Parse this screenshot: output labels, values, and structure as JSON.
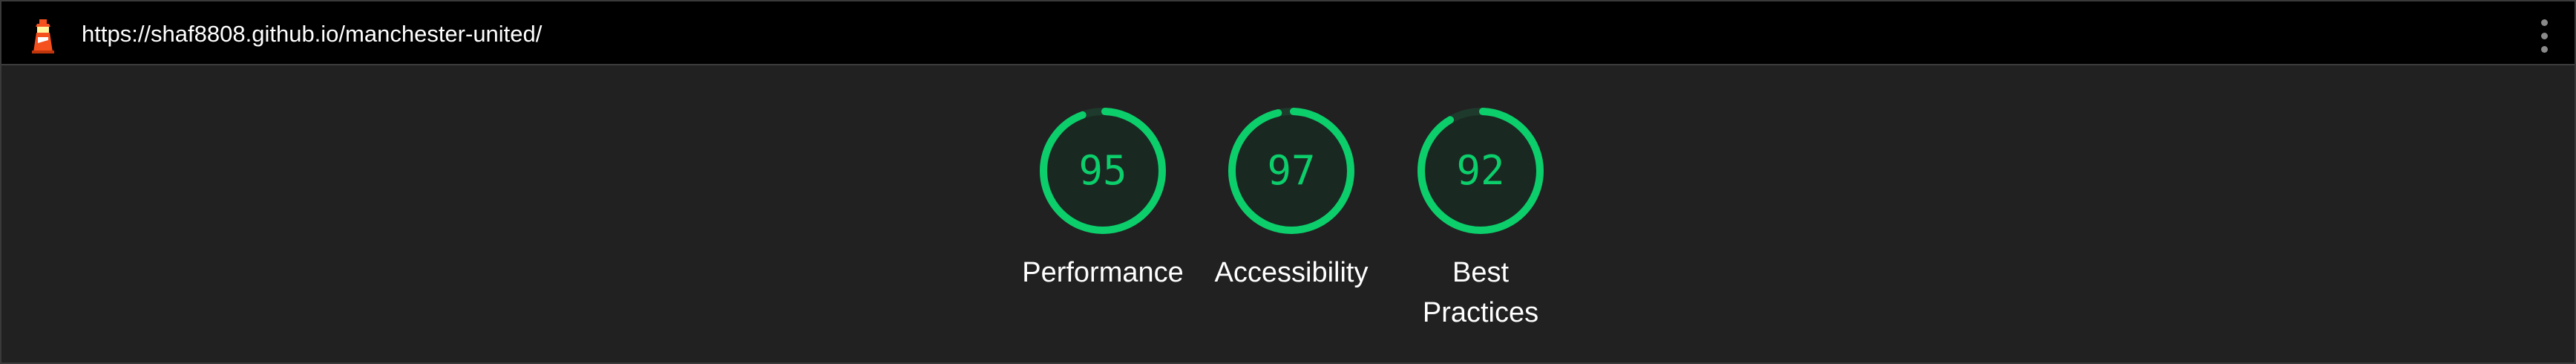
{
  "topbar": {
    "url": "https://shaf8808.github.io/manchester-united/",
    "logo_icon": "lighthouse-icon",
    "menu_icon": "vertical-dots-menu-icon"
  },
  "colors": {
    "background": "#212121",
    "topbar": "#000000",
    "pass": "#0cce6b",
    "text": "#ffffff"
  },
  "scores": [
    {
      "value": "95",
      "label": "Performance",
      "fraction": 0.95
    },
    {
      "value": "97",
      "label": "Accessibility",
      "fraction": 0.97
    },
    {
      "value": "92",
      "label": "Best Practices",
      "fraction": 0.92
    }
  ]
}
